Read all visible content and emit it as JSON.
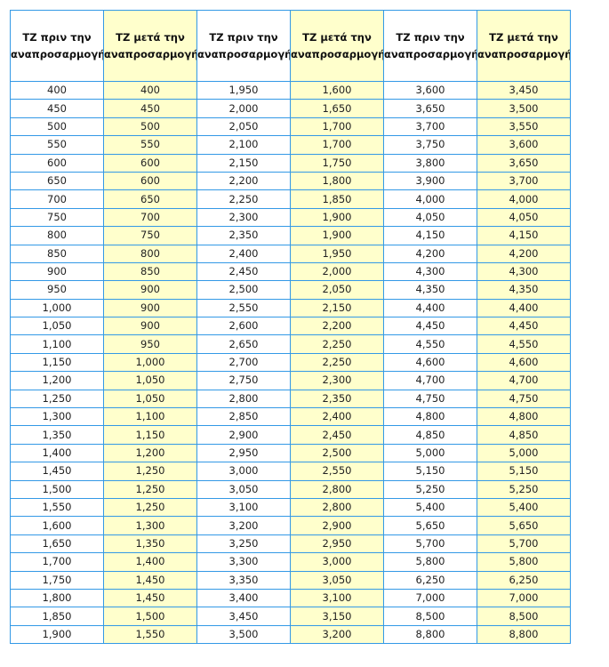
{
  "table": {
    "headers": [
      "ΤΖ πριν την αναπροσαρμογή",
      "ΤΖ μετά την αναπροσαρμογή",
      "ΤΖ πριν την αναπροσαρμογή",
      "ΤΖ μετά την αναπροσαρμογή",
      "ΤΖ πριν την αναπροσαρμογή",
      "ΤΖ μετά την αναπροσαρμογή"
    ],
    "highlight_color": "#ffffcc",
    "border_color": "#3399e6",
    "rows": [
      [
        "400",
        "400",
        "1,950",
        "1,600",
        "3,600",
        "3,450"
      ],
      [
        "450",
        "450",
        "2,000",
        "1,650",
        "3,650",
        "3,500"
      ],
      [
        "500",
        "500",
        "2,050",
        "1,700",
        "3,700",
        "3,550"
      ],
      [
        "550",
        "550",
        "2,100",
        "1,700",
        "3,750",
        "3,600"
      ],
      [
        "600",
        "600",
        "2,150",
        "1,750",
        "3,800",
        "3,650"
      ],
      [
        "650",
        "600",
        "2,200",
        "1,800",
        "3,900",
        "3,700"
      ],
      [
        "700",
        "650",
        "2,250",
        "1,850",
        "4,000",
        "4,000"
      ],
      [
        "750",
        "700",
        "2,300",
        "1,900",
        "4,050",
        "4,050"
      ],
      [
        "800",
        "750",
        "2,350",
        "1,900",
        "4,150",
        "4,150"
      ],
      [
        "850",
        "800",
        "2,400",
        "1,950",
        "4,200",
        "4,200"
      ],
      [
        "900",
        "850",
        "2,450",
        "2,000",
        "4,300",
        "4,300"
      ],
      [
        "950",
        "900",
        "2,500",
        "2,050",
        "4,350",
        "4,350"
      ],
      [
        "1,000",
        "900",
        "2,550",
        "2,150",
        "4,400",
        "4,400"
      ],
      [
        "1,050",
        "900",
        "2,600",
        "2,200",
        "4,450",
        "4,450"
      ],
      [
        "1,100",
        "950",
        "2,650",
        "2,250",
        "4,550",
        "4,550"
      ],
      [
        "1,150",
        "1,000",
        "2,700",
        "2,250",
        "4,600",
        "4,600"
      ],
      [
        "1,200",
        "1,050",
        "2,750",
        "2,300",
        "4,700",
        "4,700"
      ],
      [
        "1,250",
        "1,050",
        "2,800",
        "2,350",
        "4,750",
        "4,750"
      ],
      [
        "1,300",
        "1,100",
        "2,850",
        "2,400",
        "4,800",
        "4,800"
      ],
      [
        "1,350",
        "1,150",
        "2,900",
        "2,450",
        "4,850",
        "4,850"
      ],
      [
        "1,400",
        "1,200",
        "2,950",
        "2,500",
        "5,000",
        "5,000"
      ],
      [
        "1,450",
        "1,250",
        "3,000",
        "2,550",
        "5,150",
        "5,150"
      ],
      [
        "1,500",
        "1,250",
        "3,050",
        "2,800",
        "5,250",
        "5,250"
      ],
      [
        "1,550",
        "1,250",
        "3,100",
        "2,800",
        "5,400",
        "5,400"
      ],
      [
        "1,600",
        "1,300",
        "3,200",
        "2,900",
        "5,650",
        "5,650"
      ],
      [
        "1,650",
        "1,350",
        "3,250",
        "2,950",
        "5,700",
        "5,700"
      ],
      [
        "1,700",
        "1,400",
        "3,300",
        "3,000",
        "5,800",
        "5,800"
      ],
      [
        "1,750",
        "1,450",
        "3,350",
        "3,050",
        "6,250",
        "6,250"
      ],
      [
        "1,800",
        "1,450",
        "3,400",
        "3,100",
        "7,000",
        "7,000"
      ],
      [
        "1,850",
        "1,500",
        "3,450",
        "3,150",
        "8,500",
        "8,500"
      ],
      [
        "1,900",
        "1,550",
        "3,500",
        "3,200",
        "8,800",
        "8,800"
      ]
    ]
  }
}
